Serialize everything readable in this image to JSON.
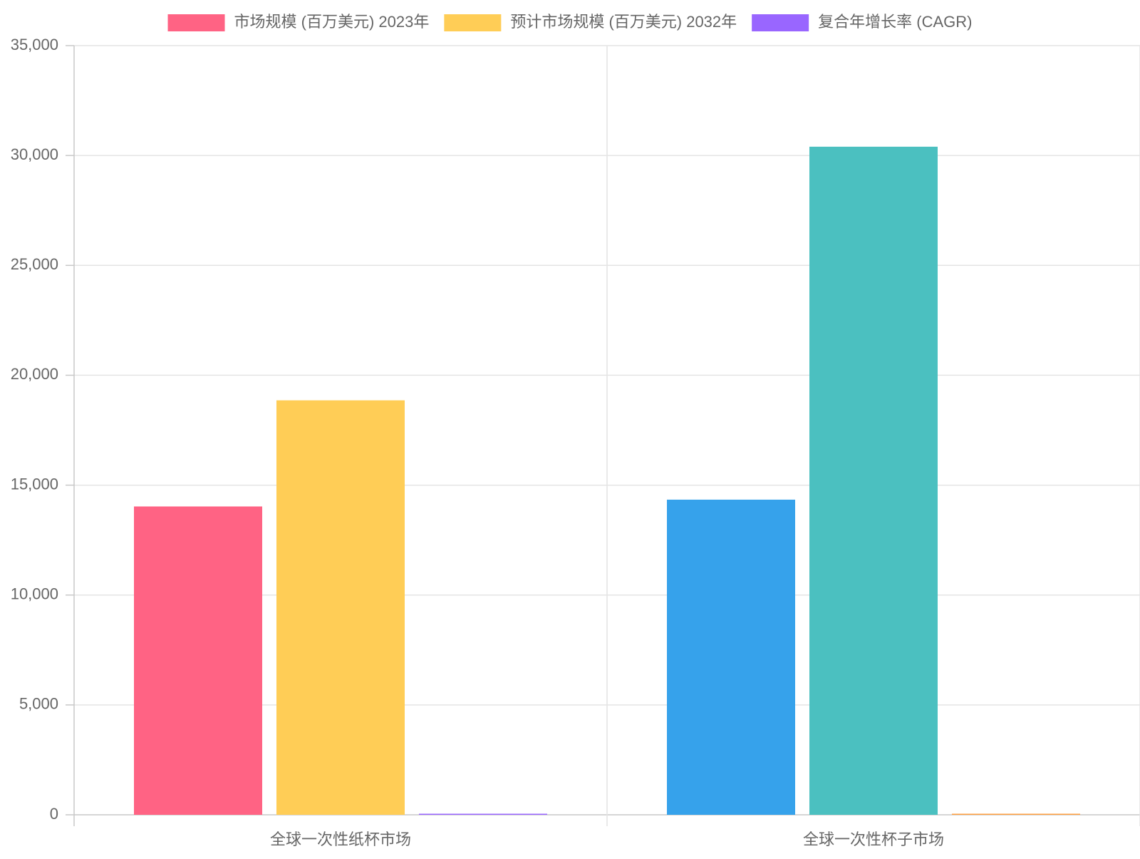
{
  "chart_data": {
    "type": "bar",
    "categories": [
      "全球一次性纸杯市场",
      "全球一次性杯子市场"
    ],
    "series": [
      {
        "name": "市场规模 (百万美元) 2023年",
        "values": [
          14030,
          14340
        ]
      },
      {
        "name": "预计市场规模 (百万美元) 2032年",
        "values": [
          18860,
          30400
        ]
      },
      {
        "name": "复合年增长率 (CAGR)",
        "values": [
          3.4,
          8.7
        ]
      }
    ],
    "bar_colors": [
      [
        "#ff6384",
        "#36a2eb"
      ],
      [
        "#ffcd56",
        "#4bc0c0"
      ],
      [
        "#9966ff",
        "#ff9f40"
      ]
    ],
    "legend_colors": [
      "#ff6384",
      "#ffcd56",
      "#9966ff"
    ],
    "ylim": [
      0,
      35000
    ],
    "yticks": [
      0,
      5000,
      10000,
      15000,
      20000,
      25000,
      30000,
      35000
    ],
    "ytick_labels": [
      "0",
      "5,000",
      "10,000",
      "15,000",
      "20,000",
      "25,000",
      "30,000",
      "35,000"
    ],
    "grid": true,
    "legend_position": "top",
    "title": "",
    "xlabel": "",
    "ylabel": ""
  }
}
